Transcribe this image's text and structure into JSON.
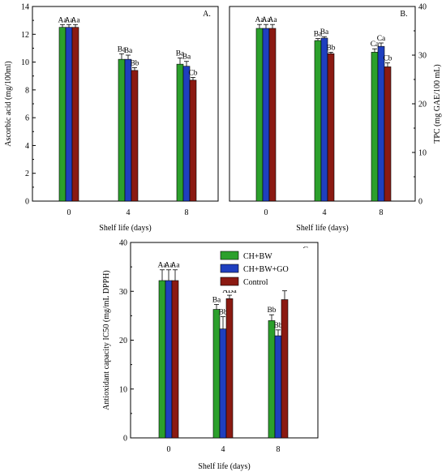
{
  "legend": [
    {
      "label": "CH+BW",
      "color": "#2ca02c"
    },
    {
      "label": "CH+BW+GO",
      "color": "#1f3fbf"
    },
    {
      "label": "Control",
      "color": "#8b1a12"
    }
  ],
  "chart_data": [
    {
      "type": "bar",
      "panel_label": "A.",
      "ylabel": "Ascorbic acid (mg/100ml)",
      "xlabel": "Shelf life (days)",
      "categories": [
        "0",
        "4",
        "8"
      ],
      "ylim": [
        0,
        14
      ],
      "yticks": [
        0,
        2,
        4,
        6,
        8,
        10,
        12,
        14
      ],
      "series": [
        {
          "name": "CH+BW",
          "values": [
            12.5,
            10.2,
            9.85
          ],
          "errors": [
            0.2,
            0.4,
            0.45
          ],
          "labels": [
            "Aa",
            "Ba",
            "Ba"
          ]
        },
        {
          "name": "CH+BW+GO",
          "values": [
            12.5,
            10.2,
            9.7
          ],
          "errors": [
            0.2,
            0.3,
            0.35
          ],
          "labels": [
            "Aa",
            "Ba",
            "Ba"
          ]
        },
        {
          "name": "Control",
          "values": [
            12.5,
            9.4,
            8.7
          ],
          "errors": [
            0.2,
            0.2,
            0.2
          ],
          "labels": [
            "Aa",
            "Bb",
            "Cb"
          ]
        }
      ]
    },
    {
      "type": "bar",
      "panel_label": "B.",
      "ylabel": "TPC (mg GAE/100 mL)",
      "xlabel": "Shelf life (days)",
      "categories": [
        "0",
        "4",
        "8"
      ],
      "ylim": [
        0,
        40
      ],
      "yticks": [
        0,
        10,
        20,
        30,
        40
      ],
      "series": [
        {
          "name": "CH+BW",
          "values": [
            35.5,
            33.0,
            30.6
          ],
          "errors": [
            0.8,
            0.4,
            0.7
          ],
          "labels": [
            "Aa",
            "Ba",
            "Ca"
          ]
        },
        {
          "name": "CH+BW+GO",
          "values": [
            35.5,
            33.5,
            31.8
          ],
          "errors": [
            0.8,
            0.3,
            0.7
          ],
          "labels": [
            "Aa",
            "Ba",
            "Ca"
          ]
        },
        {
          "name": "Control",
          "values": [
            35.5,
            30.3,
            27.6
          ],
          "errors": [
            0.8,
            0.3,
            0.8
          ],
          "labels": [
            "Aa",
            "Bb",
            "Cb"
          ]
        }
      ]
    },
    {
      "type": "bar",
      "panel_label": "C.",
      "ylabel": "Antioxidant capacity IC50 (mg/mL DPPH)",
      "xlabel": "Shelf life (days)",
      "categories": [
        "0",
        "4",
        "8"
      ],
      "ylim": [
        0,
        40
      ],
      "yticks": [
        0,
        10,
        20,
        30,
        40
      ],
      "series": [
        {
          "name": "CH+BW",
          "values": [
            32.2,
            26.3,
            24.0
          ],
          "errors": [
            2.2,
            1.0,
            1.2
          ],
          "labels": [
            "Aa",
            "Ba",
            "Bb"
          ]
        },
        {
          "name": "CH+BW+GO",
          "values": [
            32.2,
            22.3,
            20.9
          ],
          "errors": [
            2.2,
            2.5,
            1.2
          ],
          "labels": [
            "Aa",
            "Bb",
            "Bb"
          ]
        },
        {
          "name": "Control",
          "values": [
            32.2,
            28.5,
            28.3
          ],
          "errors": [
            2.2,
            0.7,
            1.8
          ],
          "labels": [
            "Aa",
            "ABa",
            "Ba"
          ]
        }
      ]
    }
  ]
}
